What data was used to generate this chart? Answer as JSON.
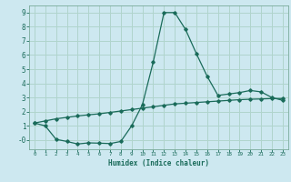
{
  "xlabel": "Humidex (Indice chaleur)",
  "background_color": "#cde8f0",
  "grid_color": "#b0d4cc",
  "line_color": "#1a6b5a",
  "xlim": [
    -0.5,
    23.5
  ],
  "ylim": [
    -0.65,
    9.5
  ],
  "x_ticks": [
    0,
    1,
    2,
    3,
    4,
    5,
    6,
    7,
    8,
    9,
    10,
    11,
    12,
    13,
    14,
    15,
    16,
    17,
    18,
    19,
    20,
    21,
    22,
    23
  ],
  "y_ticks": [
    0,
    1,
    2,
    3,
    4,
    5,
    6,
    7,
    8,
    9
  ],
  "y_tick_labels": [
    "-0",
    "1",
    "2",
    "3",
    "4",
    "5",
    "6",
    "7",
    "8",
    "9"
  ],
  "curve1_x": [
    0,
    1,
    2,
    3,
    4,
    5,
    6,
    7,
    8,
    9,
    10,
    11,
    12,
    13,
    14,
    15,
    16,
    17,
    18,
    19,
    20,
    21,
    22,
    23
  ],
  "curve1_y": [
    1.2,
    1.0,
    0.05,
    -0.1,
    -0.28,
    -0.2,
    -0.22,
    -0.25,
    -0.1,
    1.0,
    2.5,
    5.5,
    9.0,
    9.0,
    7.8,
    6.1,
    4.5,
    3.15,
    3.25,
    3.35,
    3.5,
    3.4,
    3.0,
    2.8
  ],
  "curve2_x": [
    0,
    1,
    2,
    3,
    4,
    5,
    6,
    7,
    8,
    9,
    10,
    11,
    12,
    13,
    14,
    15,
    16,
    17,
    18,
    19,
    20,
    21,
    22,
    23
  ],
  "curve2_y": [
    1.2,
    1.35,
    1.5,
    1.6,
    1.7,
    1.78,
    1.85,
    1.95,
    2.05,
    2.15,
    2.25,
    2.35,
    2.45,
    2.55,
    2.6,
    2.65,
    2.7,
    2.75,
    2.8,
    2.85,
    2.88,
    2.9,
    2.93,
    2.93
  ]
}
